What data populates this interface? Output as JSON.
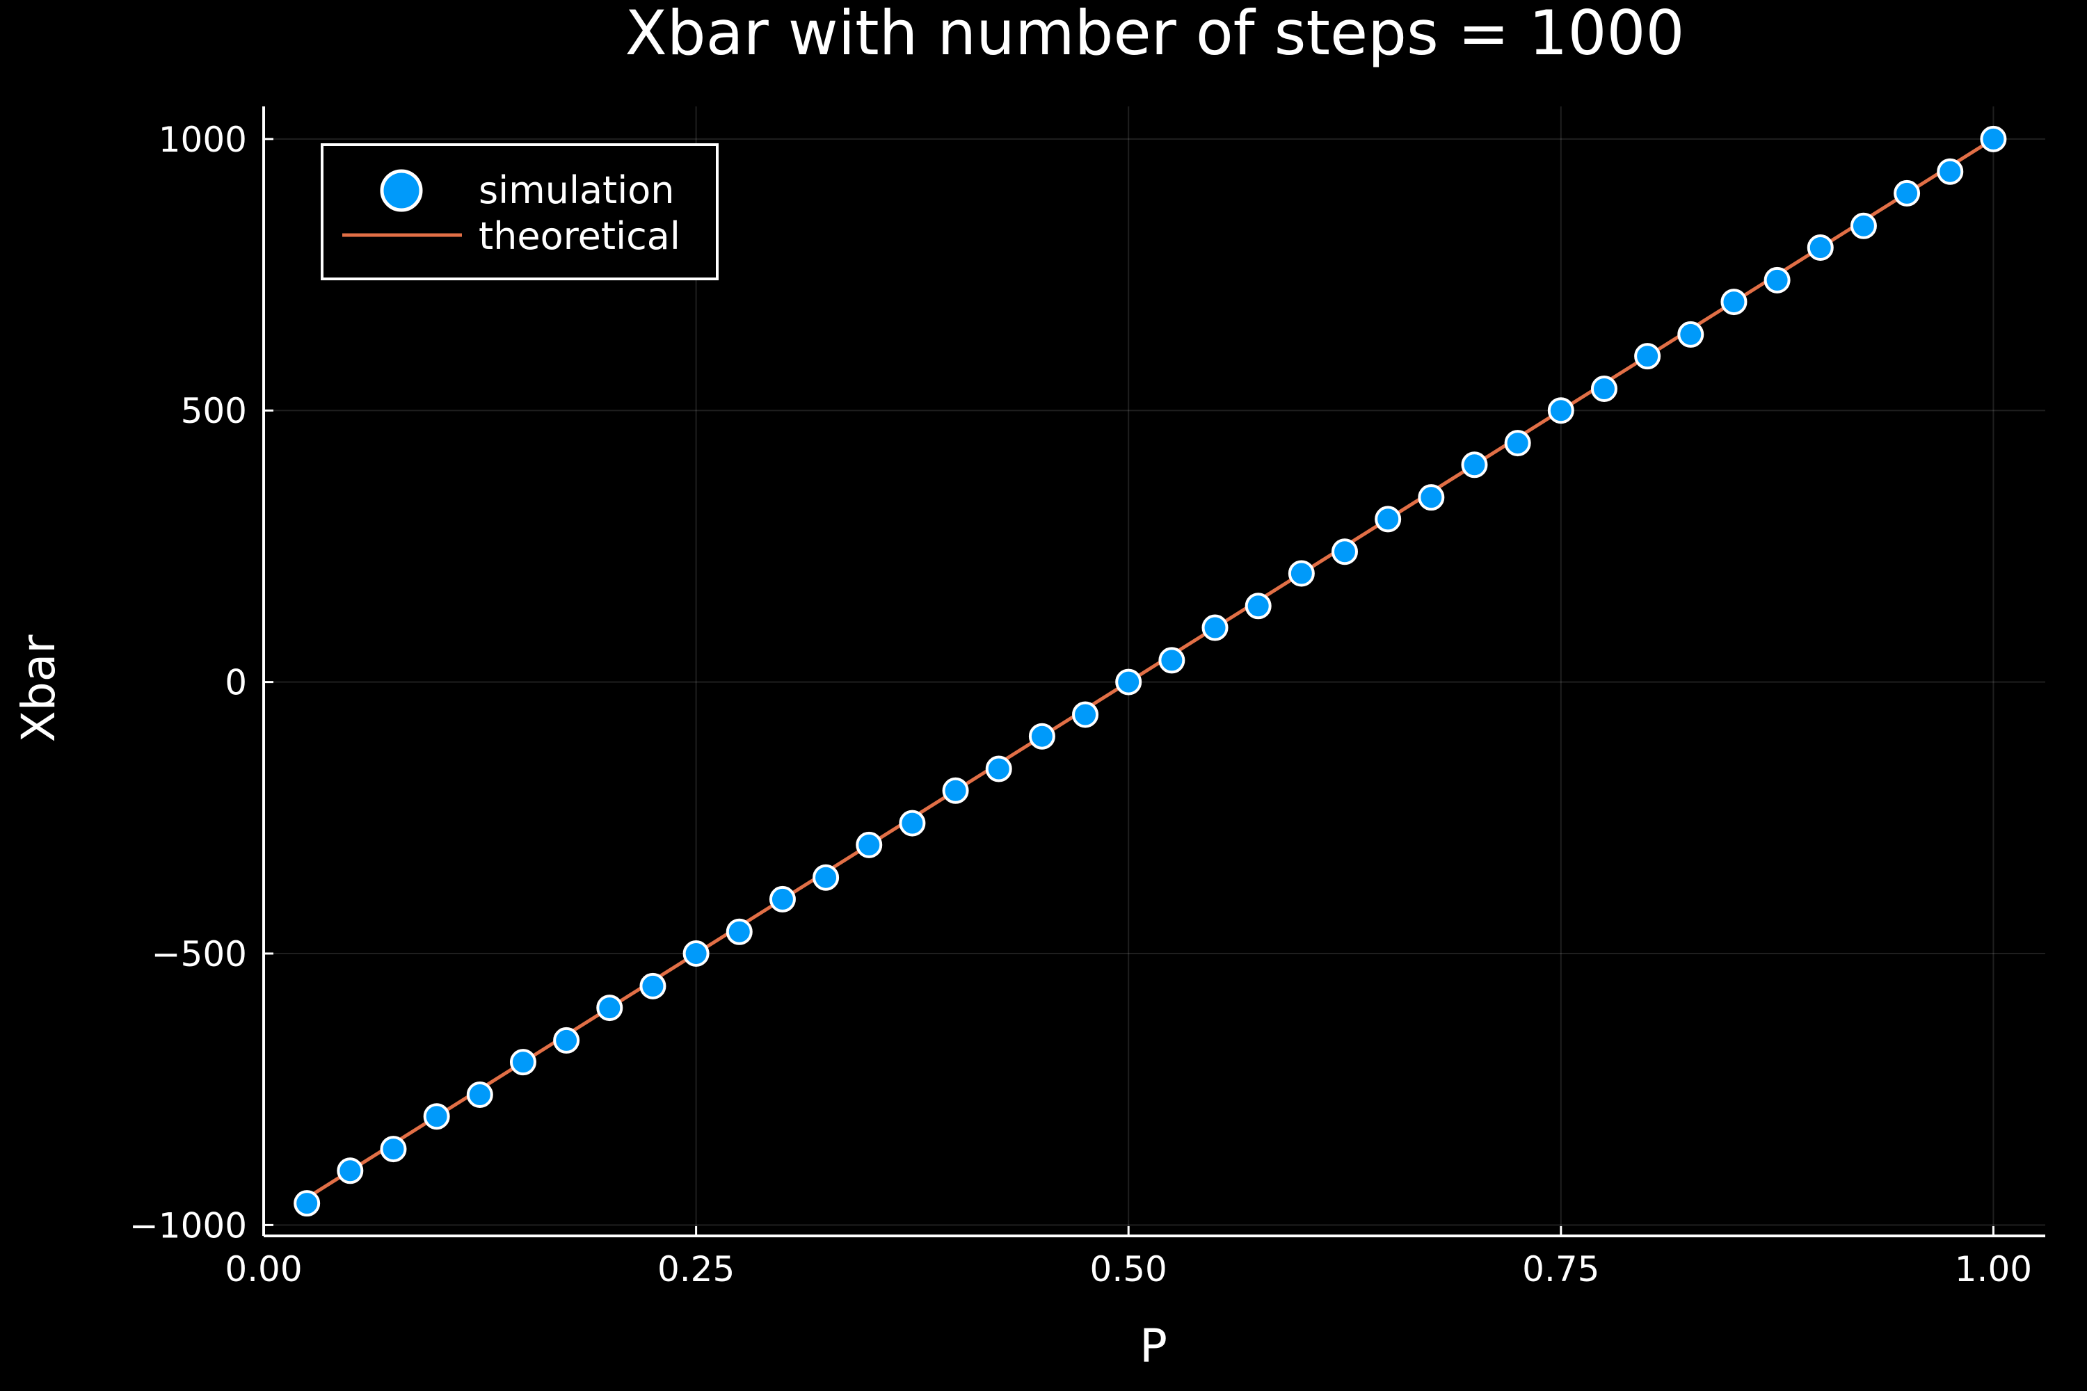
{
  "chart_data": {
    "type": "scatter",
    "title": "Xbar with number of steps = 1000",
    "xlabel": "P",
    "ylabel": "Xbar",
    "xlim": [
      0.0,
      1.03
    ],
    "ylim": [
      -1020,
      1060
    ],
    "xticks": [
      0.0,
      0.25,
      0.5,
      0.75,
      1.0
    ],
    "xtick_labels": [
      "0.00",
      "0.25",
      "0.50",
      "0.75",
      "1.00"
    ],
    "yticks": [
      -1000,
      -500,
      0,
      500,
      1000
    ],
    "ytick_labels": [
      "−1000",
      "−500",
      "0",
      "500",
      "1000"
    ],
    "grid": true,
    "legend_position": "top-left",
    "background": "#000000",
    "series": [
      {
        "name": "simulation",
        "kind": "scatter",
        "color": "#009AFA",
        "edge_color": "#FFFFFF",
        "x": [
          0.025,
          0.05,
          0.075,
          0.1,
          0.125,
          0.15,
          0.175,
          0.2,
          0.225,
          0.25,
          0.275,
          0.3,
          0.325,
          0.35,
          0.375,
          0.4,
          0.425,
          0.45,
          0.475,
          0.5,
          0.525,
          0.55,
          0.575,
          0.6,
          0.625,
          0.65,
          0.675,
          0.7,
          0.725,
          0.75,
          0.775,
          0.8,
          0.825,
          0.85,
          0.875,
          0.9,
          0.925,
          0.95,
          0.975,
          1.0
        ],
        "y": [
          -960,
          -900,
          -860,
          -800,
          -760,
          -700,
          -660,
          -600,
          -560,
          -500,
          -460,
          -400,
          -360,
          -300,
          -260,
          -200,
          -160,
          -100,
          -60,
          0,
          40,
          100,
          140,
          200,
          240,
          300,
          340,
          400,
          440,
          500,
          540,
          600,
          640,
          700,
          740,
          800,
          840,
          900,
          940,
          1000
        ]
      },
      {
        "name": "theoretical",
        "kind": "line",
        "color": "#E26F46",
        "x": [
          0.025,
          1.0
        ],
        "y": [
          -950,
          1000
        ]
      }
    ]
  }
}
